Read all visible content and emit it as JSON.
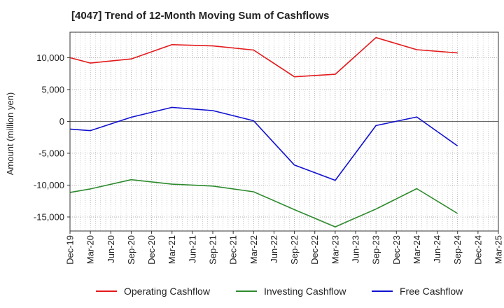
{
  "chart_data": {
    "type": "line",
    "title": "[4047]  Trend of 12-Month Moving Sum of Cashflows",
    "xlabel": "",
    "ylabel": "Amount (million yen)",
    "categories": [
      "Dec-19",
      "Mar-20",
      "Jun-20",
      "Sep-20",
      "Dec-20",
      "Mar-21",
      "Jun-21",
      "Sep-21",
      "Dec-21",
      "Mar-22",
      "Jun-22",
      "Sep-22",
      "Dec-22",
      "Mar-23",
      "Jun-23",
      "Sep-23",
      "Dec-23",
      "Mar-24",
      "Jun-24",
      "Sep-24",
      "Dec-24",
      "Mar-25"
    ],
    "ylim": [
      -17200,
      14000
    ],
    "yticks": [
      10000,
      5000,
      0,
      -5000,
      -10000,
      -15000
    ],
    "ytick_labels": [
      "10,000",
      "5,000",
      "0",
      "-5,000",
      "-10,000",
      "-15,000"
    ],
    "grid": true,
    "legend_position": "bottom",
    "series": [
      {
        "name": "Operating Cashflow",
        "color": "#e31a1c",
        "points": [
          [
            0,
            10000
          ],
          [
            1,
            9150
          ],
          [
            3,
            9800
          ],
          [
            5,
            12050
          ],
          [
            7,
            11850
          ],
          [
            9,
            11200
          ],
          [
            11,
            7000
          ],
          [
            13,
            7400
          ],
          [
            15,
            13150
          ],
          [
            17,
            11250
          ],
          [
            19,
            10750
          ]
        ]
      },
      {
        "name": "Investing Cashflow",
        "color": "#2e8b2e",
        "points": [
          [
            0,
            -11150
          ],
          [
            1,
            -10600
          ],
          [
            3,
            -9150
          ],
          [
            5,
            -9850
          ],
          [
            7,
            -10150
          ],
          [
            9,
            -11050
          ],
          [
            11,
            -13850
          ],
          [
            13,
            -16550
          ],
          [
            15,
            -13750
          ],
          [
            17,
            -10550
          ],
          [
            19,
            -14450
          ]
        ]
      },
      {
        "name": "Free Cashflow",
        "color": "#1010d0",
        "points": [
          [
            0,
            -1200
          ],
          [
            1,
            -1450
          ],
          [
            3,
            650
          ],
          [
            5,
            2200
          ],
          [
            7,
            1700
          ],
          [
            9,
            100
          ],
          [
            11,
            -6850
          ],
          [
            13,
            -9250
          ],
          [
            15,
            -650
          ],
          [
            17,
            700
          ],
          [
            19,
            -3850
          ]
        ]
      }
    ]
  }
}
